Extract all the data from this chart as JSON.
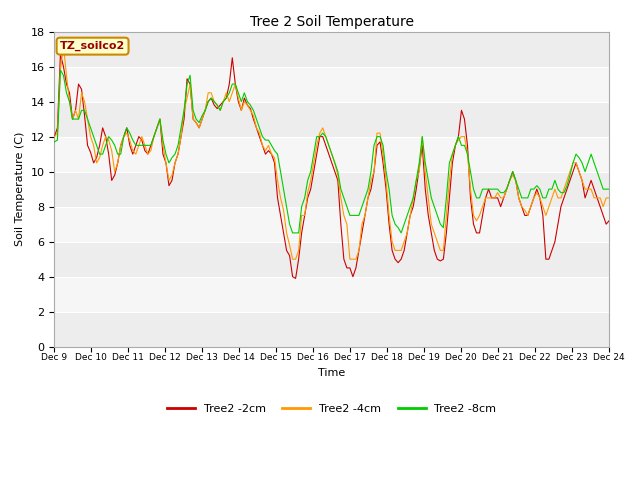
{
  "title": "Tree 2 Soil Temperature",
  "xlabel": "Time",
  "ylabel": "Soil Temperature (C)",
  "annotation": "TZ_soilco2",
  "ylim": [
    0,
    18
  ],
  "yticks": [
    0,
    2,
    4,
    6,
    8,
    10,
    12,
    14,
    16,
    18
  ],
  "xtick_labels": [
    "Dec 9",
    "Dec 10",
    "Dec 11",
    "Dec 12",
    "Dec 13",
    "Dec 14",
    "Dec 15",
    "Dec 16",
    "Dec 17",
    "Dec 18",
    "Dec 19",
    "Dec 20",
    "Dec 21",
    "Dec 22",
    "Dec 23",
    "Dec 24"
  ],
  "colors": {
    "2cm": "#cc0000",
    "4cm": "#ff9900",
    "8cm": "#00cc00",
    "bg_dark": "#dddddd",
    "bg_light": "#eeeeee",
    "plot_bg": "#f5f5f5",
    "annotation_bg": "#ffffcc",
    "annotation_border": "#cc8800"
  },
  "legend_labels": [
    "Tree2 -2cm",
    "Tree2 -4cm",
    "Tree2 -8cm"
  ],
  "tree2_2cm": [
    12.0,
    12.5,
    16.7,
    16.0,
    15.0,
    14.5,
    13.0,
    13.5,
    15.0,
    14.7,
    13.2,
    11.5,
    11.1,
    10.5,
    10.8,
    11.5,
    12.5,
    12.0,
    11.0,
    9.5,
    9.8,
    10.5,
    11.5,
    12.0,
    12.5,
    11.5,
    11.0,
    11.5,
    12.0,
    11.8,
    11.2,
    11.0,
    11.5,
    12.0,
    12.5,
    13.0,
    11.0,
    10.5,
    9.2,
    9.5,
    10.5,
    11.0,
    12.0,
    13.0,
    15.3,
    15.0,
    13.0,
    12.8,
    12.5,
    13.0,
    13.5,
    14.0,
    14.2,
    13.8,
    13.6,
    13.8,
    14.0,
    14.2,
    15.0,
    16.5,
    15.0,
    14.0,
    13.5,
    14.2,
    13.8,
    13.6,
    13.0,
    12.5,
    12.0,
    11.5,
    11.0,
    11.2,
    11.0,
    10.5,
    8.5,
    7.5,
    6.5,
    5.5,
    5.2,
    4.0,
    3.9,
    5.0,
    6.5,
    7.5,
    8.5,
    9.0,
    10.0,
    11.0,
    12.0,
    12.0,
    11.5,
    11.0,
    10.5,
    10.0,
    9.5,
    7.0,
    5.0,
    4.5,
    4.5,
    4.0,
    4.5,
    5.5,
    6.5,
    7.5,
    8.5,
    9.0,
    10.0,
    11.5,
    11.7,
    10.5,
    9.0,
    7.0,
    5.5,
    5.0,
    4.8,
    5.0,
    5.5,
    6.5,
    7.5,
    8.0,
    9.0,
    10.2,
    11.5,
    9.0,
    7.5,
    6.5,
    5.5,
    5.0,
    4.9,
    5.0,
    6.5,
    8.5,
    10.5,
    11.5,
    12.0,
    13.5,
    13.0,
    11.5,
    8.5,
    7.0,
    6.5,
    6.5,
    7.5,
    8.5,
    9.0,
    8.5,
    8.5,
    8.5,
    8.0,
    8.5,
    9.0,
    9.5,
    10.0,
    9.5,
    8.5,
    8.0,
    7.5,
    7.5,
    8.0,
    8.5,
    9.0,
    8.5,
    7.5,
    5.0,
    5.0,
    5.5,
    6.0,
    7.0,
    8.0,
    8.5,
    9.0,
    9.5,
    10.0,
    10.5,
    10.0,
    9.5,
    8.5,
    9.0,
    9.5,
    9.0,
    8.5,
    8.0,
    7.5,
    7.0,
    7.2
  ],
  "tree2_4cm": [
    12.0,
    12.2,
    15.8,
    17.2,
    15.5,
    14.0,
    13.0,
    13.5,
    13.0,
    14.5,
    14.0,
    13.0,
    12.0,
    11.5,
    10.5,
    10.8,
    11.5,
    12.0,
    11.8,
    11.2,
    10.0,
    10.5,
    11.5,
    12.0,
    12.2,
    11.8,
    11.2,
    11.0,
    11.5,
    12.0,
    11.5,
    11.0,
    11.2,
    12.0,
    12.5,
    13.0,
    11.5,
    10.5,
    9.5,
    9.8,
    10.5,
    11.0,
    12.0,
    13.5,
    14.2,
    15.0,
    13.0,
    12.8,
    12.5,
    13.0,
    13.5,
    14.5,
    14.5,
    14.0,
    13.8,
    13.5,
    14.0,
    14.5,
    14.0,
    14.5,
    15.0,
    14.2,
    13.5,
    14.0,
    13.8,
    13.5,
    13.2,
    12.5,
    12.2,
    11.5,
    11.2,
    11.5,
    11.0,
    10.8,
    9.5,
    8.5,
    7.8,
    6.5,
    5.8,
    5.0,
    5.0,
    5.5,
    7.5,
    7.5,
    8.8,
    9.5,
    10.5,
    11.5,
    12.2,
    12.5,
    12.0,
    11.5,
    11.0,
    10.5,
    9.8,
    8.5,
    7.5,
    7.0,
    5.0,
    5.0,
    5.0,
    5.5,
    7.0,
    7.5,
    8.5,
    9.5,
    10.0,
    12.2,
    12.2,
    11.0,
    9.5,
    7.5,
    6.0,
    5.5,
    5.5,
    5.5,
    6.0,
    6.5,
    7.5,
    8.5,
    9.5,
    10.0,
    12.0,
    10.0,
    8.5,
    7.0,
    6.5,
    6.0,
    5.5,
    5.5,
    7.5,
    9.5,
    11.0,
    11.5,
    11.8,
    12.0,
    12.0,
    11.0,
    9.0,
    7.5,
    7.2,
    7.5,
    8.0,
    8.5,
    8.5,
    8.5,
    8.5,
    8.8,
    8.5,
    8.5,
    9.0,
    9.5,
    9.8,
    9.5,
    8.5,
    8.0,
    7.8,
    7.5,
    8.0,
    8.5,
    8.8,
    8.5,
    8.0,
    7.5,
    8.0,
    8.5,
    9.0,
    8.5,
    8.5,
    9.0,
    9.5,
    10.0,
    10.5,
    10.5,
    10.0,
    9.5,
    9.0,
    9.0,
    9.0,
    8.5,
    8.5,
    8.5,
    8.0,
    8.5,
    8.5
  ],
  "tree2_8cm": [
    11.7,
    11.8,
    15.8,
    15.5,
    14.5,
    14.0,
    13.0,
    13.0,
    13.0,
    13.5,
    13.5,
    13.0,
    12.5,
    12.0,
    11.5,
    11.0,
    11.0,
    11.5,
    12.0,
    11.8,
    11.5,
    11.0,
    11.0,
    12.0,
    12.5,
    12.2,
    11.8,
    11.5,
    11.5,
    11.5,
    11.5,
    11.5,
    11.5,
    12.0,
    12.5,
    13.0,
    11.8,
    11.0,
    10.5,
    10.8,
    11.0,
    11.5,
    12.5,
    13.5,
    15.0,
    15.5,
    13.5,
    13.0,
    12.8,
    13.2,
    13.5,
    14.0,
    14.2,
    14.0,
    13.8,
    13.5,
    14.0,
    14.2,
    14.5,
    15.0,
    15.0,
    14.5,
    14.0,
    14.5,
    14.0,
    13.8,
    13.5,
    13.0,
    12.5,
    12.0,
    11.8,
    11.8,
    11.5,
    11.2,
    11.0,
    10.0,
    9.0,
    8.0,
    7.0,
    6.5,
    6.5,
    6.5,
    8.0,
    8.5,
    9.5,
    10.0,
    11.0,
    12.0,
    12.0,
    12.2,
    12.0,
    11.5,
    11.0,
    10.5,
    10.0,
    9.0,
    8.5,
    8.0,
    7.5,
    7.5,
    7.5,
    7.5,
    8.0,
    8.5,
    9.0,
    10.0,
    11.5,
    12.0,
    12.0,
    11.5,
    10.0,
    9.0,
    7.5,
    7.0,
    6.8,
    6.5,
    7.0,
    7.5,
    8.0,
    8.5,
    9.5,
    10.5,
    12.0,
    10.5,
    9.5,
    8.5,
    8.0,
    7.5,
    7.0,
    6.8,
    8.5,
    10.5,
    11.0,
    11.5,
    12.0,
    11.5,
    11.5,
    11.0,
    10.0,
    9.0,
    8.5,
    8.5,
    9.0,
    9.0,
    9.0,
    9.0,
    9.0,
    9.0,
    8.8,
    8.8,
    9.0,
    9.5,
    10.0,
    9.5,
    9.0,
    8.5,
    8.5,
    8.5,
    9.0,
    9.0,
    9.2,
    9.0,
    8.5,
    8.5,
    9.0,
    9.0,
    9.5,
    9.0,
    8.8,
    8.8,
    9.2,
    9.8,
    10.5,
    11.0,
    10.8,
    10.5,
    10.0,
    10.5,
    11.0,
    10.5,
    10.0,
    9.5,
    9.0,
    9.0,
    9.0
  ]
}
